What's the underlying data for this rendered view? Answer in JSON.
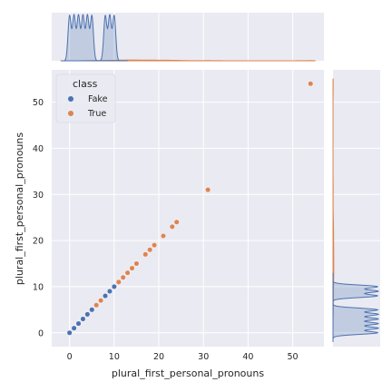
{
  "chart_data": {
    "type": "scatter",
    "subtype": "jointplot",
    "xlabel": "plural_first_personal_pronouns",
    "ylabel": "plural_first_personal_pronouns",
    "xticks": [
      0,
      10,
      20,
      30,
      40,
      50
    ],
    "yticks": [
      0,
      10,
      20,
      30,
      40,
      50
    ],
    "xlim": [
      -4,
      57
    ],
    "ylim": [
      -3,
      57
    ],
    "grid": true,
    "legend": {
      "title": "class",
      "placement": "top-left"
    },
    "series": [
      {
        "name": "Fake",
        "color": "#4c72b0",
        "points": [
          [
            0,
            0
          ],
          [
            1,
            1
          ],
          [
            2,
            2
          ],
          [
            3,
            3
          ],
          [
            4,
            4
          ],
          [
            5,
            5
          ],
          [
            8,
            8
          ],
          [
            9,
            9
          ],
          [
            10,
            10
          ]
        ]
      },
      {
        "name": "True",
        "color": "#dd8452",
        "points": [
          [
            6,
            6
          ],
          [
            7,
            7
          ],
          [
            11,
            11
          ],
          [
            12,
            12
          ],
          [
            13,
            13
          ],
          [
            14,
            14
          ],
          [
            15,
            15
          ],
          [
            17,
            17
          ],
          [
            18,
            18
          ],
          [
            19,
            19
          ],
          [
            21,
            21
          ],
          [
            23,
            23
          ],
          [
            24,
            24
          ],
          [
            31,
            31
          ],
          [
            54,
            54
          ]
        ]
      }
    ],
    "marginal": {
      "type": "kde",
      "position": [
        "top",
        "right"
      ]
    }
  }
}
